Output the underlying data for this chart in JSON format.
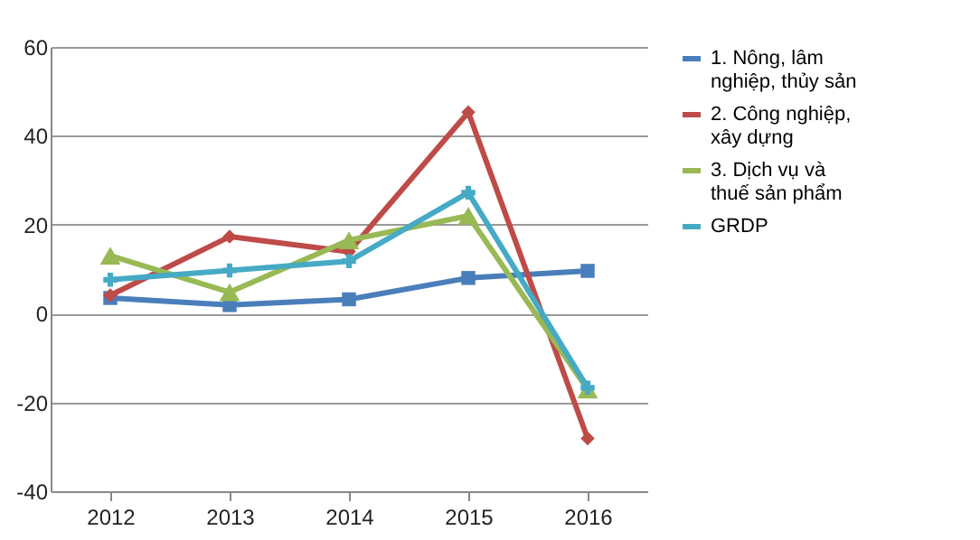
{
  "chart_data": {
    "type": "line",
    "categories": [
      "2012",
      "2013",
      "2014",
      "2015",
      "2016"
    ],
    "series": [
      {
        "name": "1. Nông, lâm nghiệp, thủy sản",
        "color": "#4a7ebb",
        "marker": "square",
        "values": [
          3.5,
          1.9,
          3.2,
          8.0,
          9.6
        ]
      },
      {
        "name": "2. Công nghiệp, xây dựng",
        "color": "#be4b48",
        "marker": "diamond",
        "values": [
          4.1,
          17.3,
          13.9,
          45.3,
          -28.1
        ]
      },
      {
        "name": "3. Dịch vụ và thuế sản phẩm",
        "color": "#98b954",
        "marker": "triangle",
        "values": [
          13.0,
          4.8,
          16.5,
          22.0,
          -17.1
        ]
      },
      {
        "name": "GRDP",
        "color": "#46aac5",
        "marker": "cross",
        "values": [
          7.6,
          9.7,
          11.8,
          27.2,
          -16.7
        ]
      }
    ],
    "ylim": [
      -40,
      60
    ],
    "yticks": [
      -40,
      -20,
      0,
      20,
      40,
      60
    ],
    "grid": "y",
    "legend": "right"
  }
}
